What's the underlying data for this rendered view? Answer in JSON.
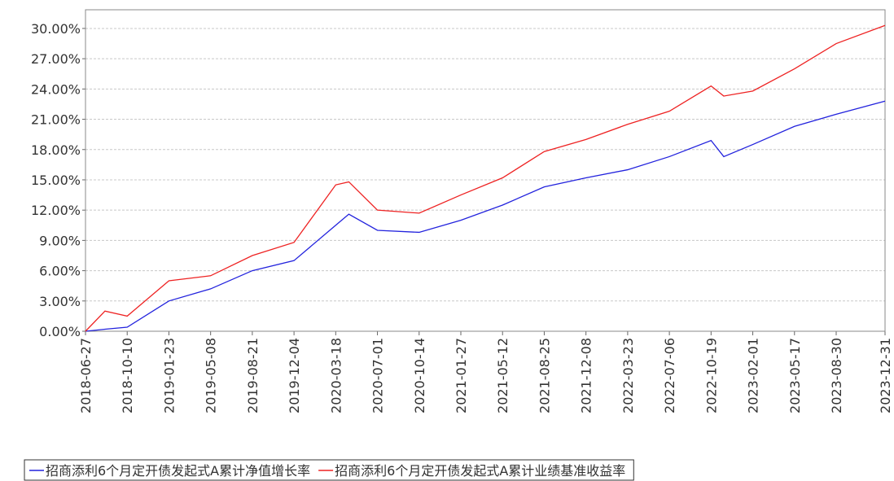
{
  "chart_data": {
    "type": "line",
    "x": [
      "2018-06-27",
      "2018-08-15",
      "2018-10-10",
      "2019-01-23",
      "2019-05-08",
      "2019-08-21",
      "2019-12-04",
      "2020-03-18",
      "2020-04-20",
      "2020-07-01",
      "2020-10-14",
      "2021-01-27",
      "2021-05-12",
      "2021-08-25",
      "2021-12-08",
      "2022-03-23",
      "2022-07-06",
      "2022-10-19",
      "2022-11-20",
      "2023-02-01",
      "2023-05-17",
      "2023-08-30",
      "2023-12-31"
    ],
    "series": [
      {
        "name": "招商添利6个月定开债发起式A累计净值增长率",
        "color": "#2222dd",
        "values": [
          0,
          0.2,
          0.4,
          3.0,
          4.2,
          6.0,
          7.0,
          10.5,
          11.6,
          10.0,
          9.8,
          11.0,
          12.5,
          14.3,
          15.2,
          16.0,
          17.3,
          18.9,
          17.3,
          18.5,
          20.3,
          21.5,
          22.8
        ]
      },
      {
        "name": "招商添利6个月定开债发起式A累计业绩基准收益率",
        "color": "#ee2222",
        "values": [
          0,
          2.0,
          1.5,
          5.0,
          5.5,
          7.5,
          8.8,
          14.5,
          14.8,
          12.0,
          11.7,
          13.5,
          15.2,
          17.8,
          19.0,
          20.5,
          21.8,
          24.3,
          23.3,
          23.8,
          26.0,
          28.5,
          30.3
        ]
      }
    ],
    "xlim": [
      "2018-06-27",
      "2023-12-31"
    ],
    "xticks": [
      "2018-06-27",
      "2018-10-10",
      "2019-01-23",
      "2019-05-08",
      "2019-08-21",
      "2019-12-04",
      "2020-03-18",
      "2020-07-01",
      "2020-10-14",
      "2021-01-27",
      "2021-05-12",
      "2021-08-25",
      "2021-12-08",
      "2022-03-23",
      "2022-07-06",
      "2022-10-19",
      "2023-02-01",
      "2023-05-17",
      "2023-08-30",
      "2023-12-31"
    ],
    "ylim": [
      0,
      31.85
    ],
    "yticks": [
      {
        "value": 0,
        "label": "0.00%"
      },
      {
        "value": 3,
        "label": "3.00%"
      },
      {
        "value": 6,
        "label": "6.00%"
      },
      {
        "value": 9,
        "label": "9.00%"
      },
      {
        "value": 12,
        "label": "12.00%"
      },
      {
        "value": 15,
        "label": "15.00%"
      },
      {
        "value": 18,
        "label": "18.00%"
      },
      {
        "value": 21,
        "label": "21.00%"
      },
      {
        "value": 24,
        "label": "24.00%"
      },
      {
        "value": 27,
        "label": "27.00%"
      },
      {
        "value": 30,
        "label": "30.00%"
      }
    ],
    "grid": true
  }
}
